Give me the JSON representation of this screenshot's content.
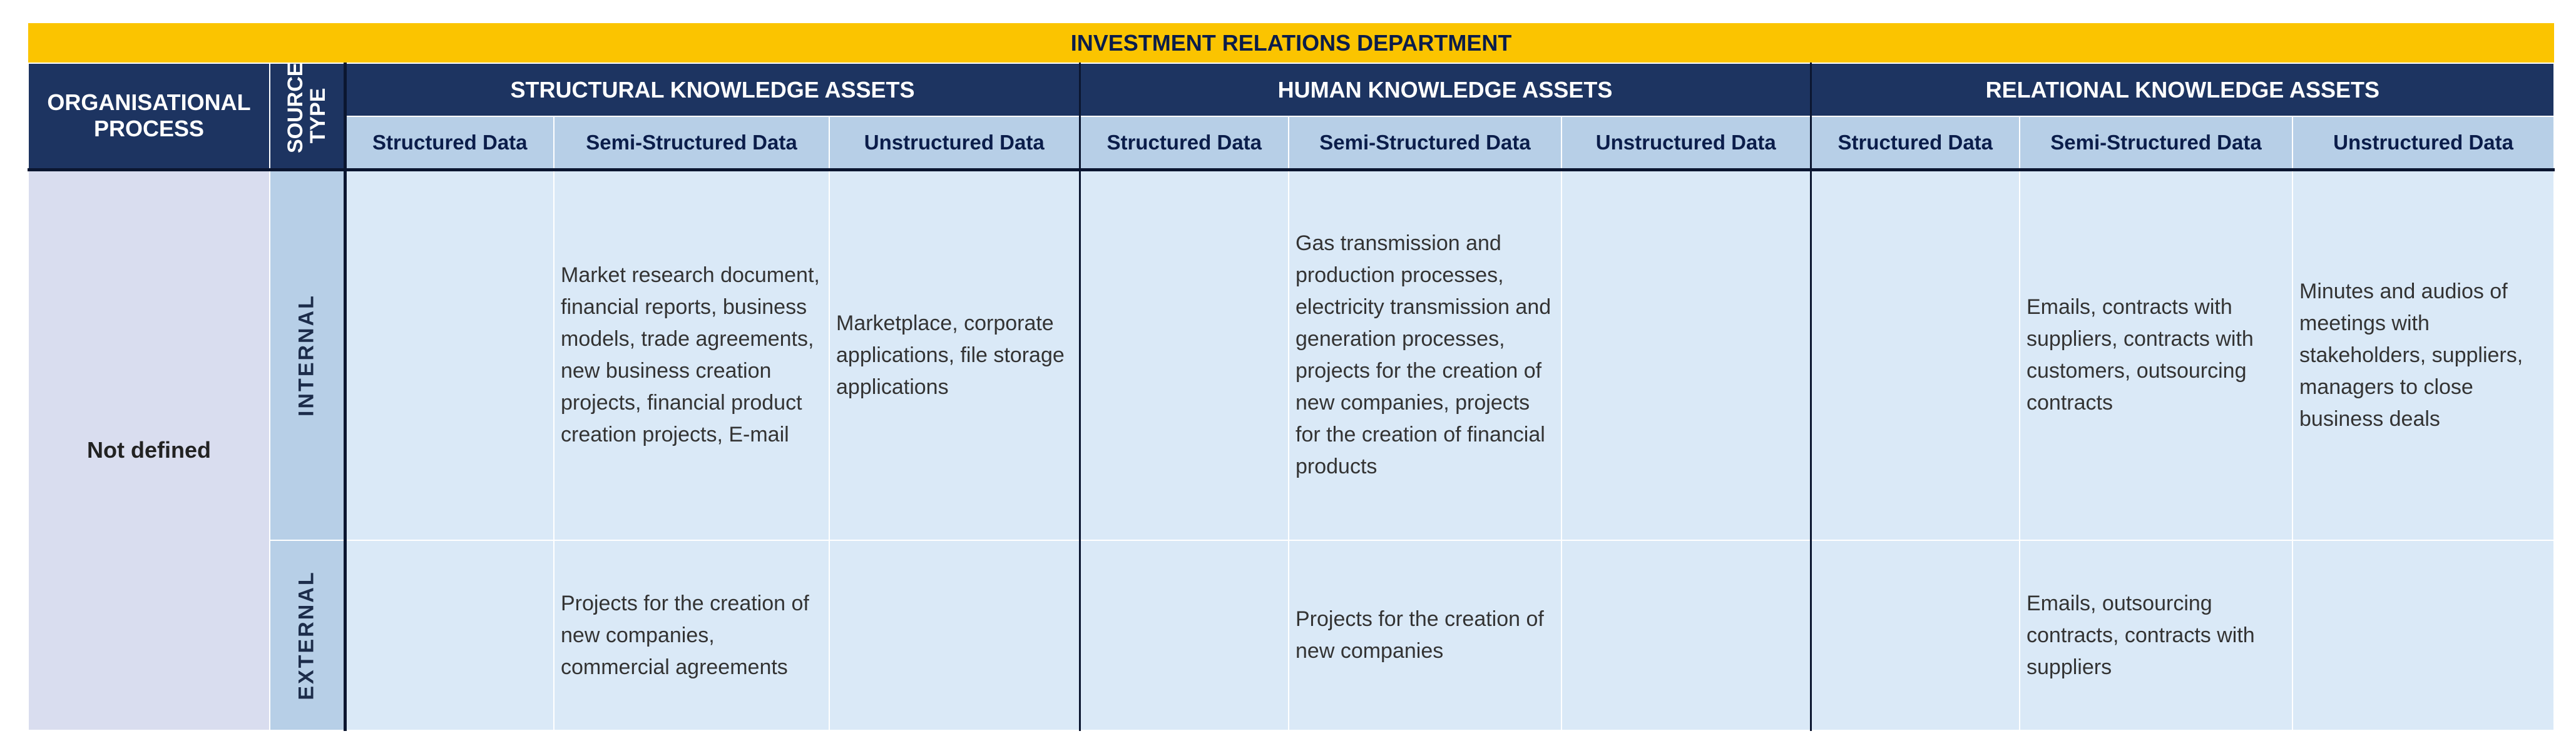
{
  "title": "INVESTMENT RELATIONS DEPARTMENT",
  "headers": {
    "process": "ORGANISATIONAL PROCESS",
    "source_type": "SOURCE TYPE",
    "groups": [
      "STRUCTURAL KNOWLEDGE ASSETS",
      "HUMAN KNOWLEDGE ASSETS",
      "RELATIONAL KNOWLEDGE ASSETS"
    ],
    "subs": [
      "Structured Data",
      "Semi-Structured Data",
      "Unstructured Data",
      "Structured Data",
      "Semi-Structured Data",
      "Unstructured Data",
      "Structured Data",
      "Semi-Structured Data",
      "Unstructured Data"
    ]
  },
  "process": "Not defined",
  "rows": [
    {
      "type": "INTERNAL",
      "cells": [
        "",
        "Market research document, financial reports, business models, trade agreements, new business creation projects, financial product creation projects, E-mail",
        "Marketplace, corporate applications, file storage applications",
        "",
        "Gas transmission and production processes, electricity transmission and generation processes, projects for the creation of new companies, projects for the creation of financial products",
        "",
        "",
        "Emails, contracts with suppliers, contracts with customers, outsourcing contracts",
        "Minutes and audios of meetings with stakeholders, suppliers, managers to close business deals"
      ]
    },
    {
      "type": "EXTERNAL",
      "cells": [
        "",
        "Projects for the creation of new companies, commercial agreements",
        "",
        "",
        "Projects for the creation of new companies",
        "",
        "",
        "Emails, outsourcing contracts, contracts with suppliers",
        ""
      ]
    }
  ],
  "colors": {
    "title_bg": "#fbc400",
    "header_bg": "#1d3461",
    "subheader_bg": "#b7cfe7",
    "process_bg": "#d9ddef",
    "cell_bg": "#dae9f7"
  }
}
